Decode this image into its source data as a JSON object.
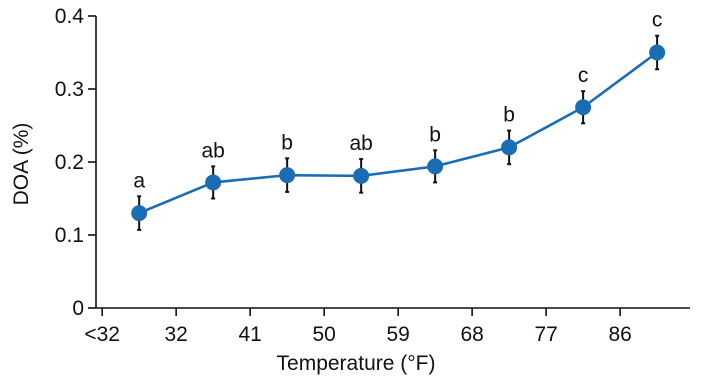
{
  "chart_data": {
    "type": "line",
    "xlabel": "Temperature (°F)",
    "ylabel": "DOA (%)",
    "ylim": [
      0,
      0.4
    ],
    "yticks": [
      "0",
      "0.1",
      "0.2",
      "0.3",
      "0.4"
    ],
    "xticks": [
      "<32",
      "32",
      "41",
      "50",
      "59",
      "68",
      "77",
      "86"
    ],
    "grid": false,
    "legend": "none",
    "color": "#1a6db5",
    "series": [
      {
        "x": [
          27.5,
          36.5,
          45.5,
          54.5,
          63.5,
          72.5,
          81.5,
          90.5
        ],
        "y": [
          0.13,
          0.172,
          0.182,
          0.181,
          0.194,
          0.22,
          0.275,
          0.35
        ],
        "error": [
          0.023,
          0.022,
          0.023,
          0.023,
          0.022,
          0.023,
          0.022,
          0.023
        ],
        "labels": [
          "a",
          "ab",
          "b",
          "ab",
          "b",
          "b",
          "c",
          "c"
        ]
      }
    ]
  }
}
